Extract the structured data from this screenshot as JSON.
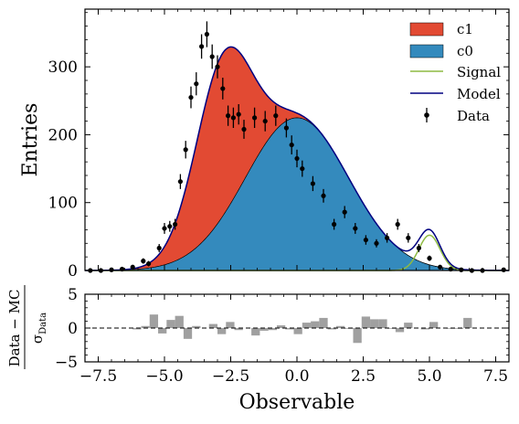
{
  "chart_data": [
    {
      "type": "area",
      "xlabel": "",
      "ylabel": "Entries",
      "xlim": [
        -8,
        8
      ],
      "ylim": [
        0,
        385
      ],
      "yticks": [
        0,
        100,
        200,
        300
      ],
      "yticklabels": [
        "0",
        "100",
        "200",
        "300"
      ],
      "grid": false,
      "legend_position": "top-right",
      "legend": [
        "c1",
        "c0",
        "Signal",
        "Model",
        "Data"
      ],
      "colors": {
        "c1": "#e24a33",
        "c0": "#348abd",
        "signal": "#8eba42",
        "model": "#000080",
        "data": "#000000"
      },
      "components": {
        "c1": {
          "shape": "gaussian",
          "mean": -2.8,
          "sigma": 1.05,
          "peak": 240
        },
        "c0": {
          "shape": "gaussian",
          "mean": 0.0,
          "sigma": 1.95,
          "peak": 225
        },
        "signal": {
          "shape": "gaussian",
          "mean": 5.0,
          "sigma": 0.4,
          "peak": 52
        }
      },
      "stacking": "c0 drawn at bottom, c1 stacked on top; Model = c0 + c1 + Signal",
      "data_points": {
        "x": [
          -7.8,
          -7.4,
          -7.0,
          -6.6,
          -6.2,
          -5.8,
          -5.6,
          -5.2,
          -5.0,
          -4.8,
          -4.6,
          -4.4,
          -4.2,
          -4.0,
          -3.8,
          -3.6,
          -3.4,
          -3.2,
          -3.0,
          -2.8,
          -2.6,
          -2.4,
          -2.2,
          -2.0,
          -1.6,
          -1.2,
          -0.8,
          -0.4,
          -0.2,
          0.0,
          0.2,
          0.6,
          1.0,
          1.4,
          1.8,
          2.2,
          2.6,
          3.0,
          3.4,
          3.8,
          4.2,
          4.6,
          5.0,
          5.4,
          5.8,
          6.2,
          6.6,
          7.0,
          7.8
        ],
        "y": [
          0,
          0,
          1,
          2,
          5,
          14,
          10,
          33,
          62,
          65,
          68,
          131,
          178,
          255,
          275,
          330,
          348,
          315,
          300,
          268,
          228,
          225,
          230,
          208,
          225,
          220,
          228,
          210,
          185,
          165,
          150,
          128,
          110,
          68,
          86,
          62,
          45,
          40,
          48,
          68,
          48,
          33,
          18,
          5,
          2,
          1,
          0,
          0,
          1
        ],
        "yerr": [
          1,
          1,
          1,
          2,
          3,
          4,
          4,
          6,
          8,
          8,
          8,
          11,
          13,
          16,
          17,
          18,
          19,
          18,
          17,
          16,
          15,
          15,
          15,
          14,
          15,
          15,
          15,
          14,
          14,
          13,
          12,
          11,
          10,
          8,
          9,
          8,
          7,
          6,
          7,
          8,
          7,
          6,
          4,
          2,
          2,
          1,
          1,
          1,
          1
        ]
      }
    },
    {
      "type": "bar",
      "xlabel": "Observable",
      "ylabel": "Data − MC / σ_Data",
      "ylabel_numerator": "Data − MC",
      "ylabel_denominator": "σ",
      "ylabel_denominator_sub": "Data",
      "xlim": [
        -8,
        8
      ],
      "ylim": [
        -5,
        5
      ],
      "xticks": [
        -7.5,
        -5.0,
        -2.5,
        0.0,
        2.5,
        5.0,
        7.5
      ],
      "xticklabels": [
        "−7.5",
        "−5.0",
        "−2.5",
        "0.0",
        "2.5",
        "5.0",
        "7.5"
      ],
      "yticks": [
        -5,
        0,
        5
      ],
      "yticklabels": [
        "−5",
        "0",
        "5"
      ],
      "reference_line": 0,
      "bar_color": "#a0a0a0",
      "bin_edges_start": -6.2,
      "bin_width": 0.32,
      "values": [
        -0.2,
        0.3,
        2.0,
        -0.8,
        1.2,
        1.8,
        -1.6,
        0.3,
        0.0,
        0.6,
        -0.9,
        0.9,
        -0.3,
        0.0,
        -1.1,
        -0.4,
        -0.3,
        0.4,
        -0.2,
        -0.9,
        0.8,
        1.0,
        1.5,
        -0.2,
        0.3,
        -0.1,
        -2.2,
        1.7,
        1.3,
        1.3,
        -0.1,
        -0.6,
        0.8,
        0.0,
        -0.2,
        0.9,
        0.0,
        -0.1,
        -0.1,
        1.5
      ]
    }
  ]
}
